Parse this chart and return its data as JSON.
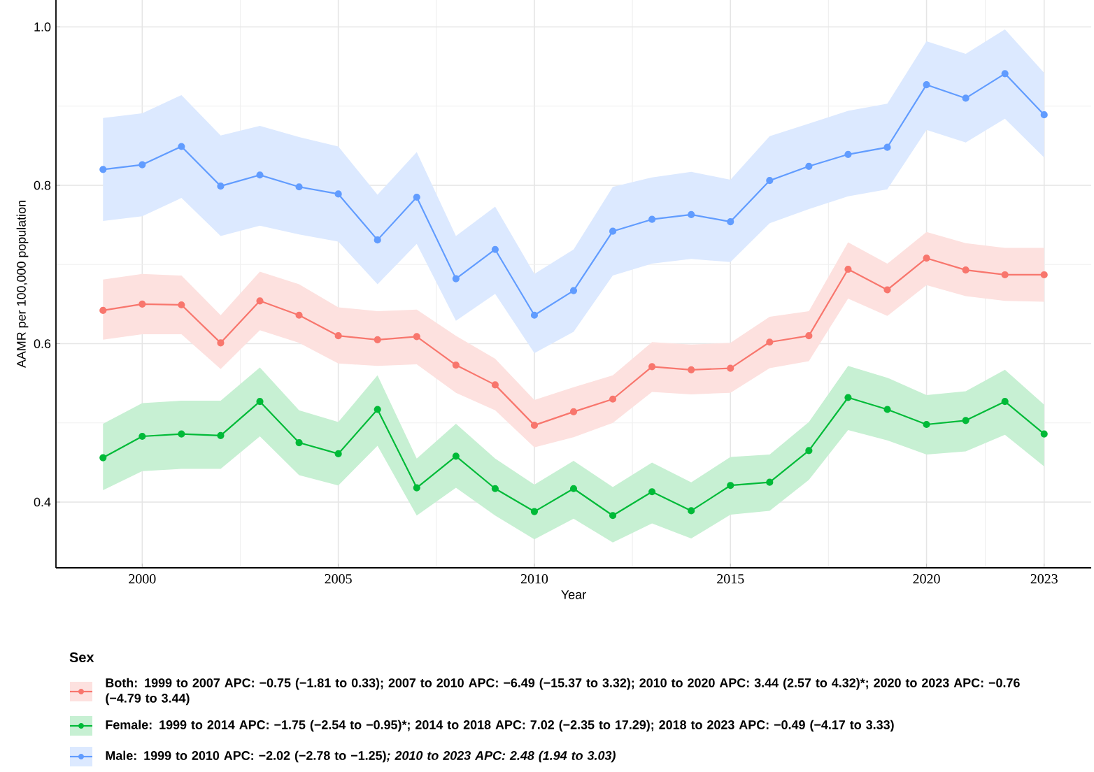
{
  "chart_data": {
    "type": "line",
    "xlabel": "Year",
    "ylabel": "AAMR per 100,000 population",
    "legend_title": "Sex",
    "legend": "bottom",
    "grid": true,
    "marker": "circle",
    "line_style": "solid",
    "x": [
      1999,
      2000,
      2001,
      2002,
      2003,
      2004,
      2005,
      2006,
      2007,
      2008,
      2009,
      2010,
      2011,
      2012,
      2013,
      2014,
      2015,
      2016,
      2017,
      2018,
      2019,
      2020,
      2021,
      2022,
      2023
    ],
    "xlim": [
      1997.8,
      2024.2
    ],
    "xticks": [
      2000,
      2005,
      2010,
      2015,
      2020,
      2023
    ],
    "ylim": [
      0.317,
      1.034
    ],
    "yticks": [
      0.4,
      0.6,
      0.8,
      {
        "value": 1.0,
        "label": "1.0"
      }
    ],
    "series": [
      {
        "name": "Both: 1999 to 2007 APC: −0.75 (−1.81 to 0.33); 2007 to 2010 APC: −6.49 (−15.37 to 3.32); 2010 to 2020 APC: 3.44 (2.57 to 4.32)*; 2020 to 2023 APC: −0.76 (−4.79 to 3.44)",
        "color": "#f8766d",
        "values": [
          0.642,
          0.65,
          0.649,
          0.601,
          0.654,
          0.636,
          0.61,
          0.605,
          0.609,
          0.573,
          0.548,
          0.497,
          0.514,
          0.53,
          0.571,
          0.567,
          0.569,
          0.602,
          0.61,
          0.694,
          0.668,
          0.708,
          0.693,
          0.687,
          0.687
        ],
        "upper": [
          0.681,
          0.688,
          0.686,
          0.636,
          0.691,
          0.675,
          0.646,
          0.641,
          0.643,
          0.61,
          0.581,
          0.529,
          0.545,
          0.56,
          0.602,
          0.599,
          0.601,
          0.634,
          0.641,
          0.728,
          0.701,
          0.741,
          0.727,
          0.721,
          0.721
        ],
        "lower": [
          0.605,
          0.612,
          0.612,
          0.568,
          0.617,
          0.601,
          0.575,
          0.572,
          0.574,
          0.538,
          0.516,
          0.469,
          0.482,
          0.5,
          0.539,
          0.536,
          0.538,
          0.569,
          0.578,
          0.657,
          0.635,
          0.674,
          0.66,
          0.654,
          0.653
        ]
      },
      {
        "name": "Female: 1999 to 2014 APC: −1.75 (−2.54 to −0.95)*; 2014 to 2018 APC: 7.02 (−2.35 to 17.29); 2018 to 2023 APC: −0.49 (−4.17 to 3.33)",
        "color": "#00ba38",
        "values": [
          0.456,
          0.483,
          0.486,
          0.484,
          0.527,
          0.475,
          0.461,
          0.517,
          0.418,
          0.458,
          0.417,
          0.388,
          0.417,
          0.383,
          0.413,
          0.389,
          0.421,
          0.425,
          0.465,
          0.532,
          0.517,
          0.498,
          0.503,
          0.527,
          0.486
        ],
        "upper": [
          0.499,
          0.525,
          0.528,
          0.528,
          0.57,
          0.516,
          0.501,
          0.56,
          0.455,
          0.499,
          0.455,
          0.422,
          0.452,
          0.419,
          0.45,
          0.425,
          0.457,
          0.46,
          0.501,
          0.572,
          0.557,
          0.535,
          0.54,
          0.567,
          0.523
        ],
        "lower": [
          0.415,
          0.439,
          0.442,
          0.442,
          0.483,
          0.434,
          0.421,
          0.471,
          0.383,
          0.418,
          0.383,
          0.353,
          0.379,
          0.349,
          0.373,
          0.354,
          0.384,
          0.389,
          0.428,
          0.491,
          0.478,
          0.46,
          0.464,
          0.485,
          0.445
        ]
      },
      {
        "name": "Male: 1999 to 2010 APC: −2.02 (−2.78 to −1.25)*; 2010 to 2023 APC: 2.48 (1.94 to 3.03)*",
        "color": "#619cff",
        "values": [
          0.82,
          0.826,
          0.849,
          0.799,
          0.813,
          0.798,
          0.789,
          0.731,
          0.785,
          0.682,
          0.719,
          0.636,
          0.667,
          0.742,
          0.757,
          0.763,
          0.754,
          0.806,
          0.824,
          0.839,
          0.848,
          0.927,
          0.91,
          0.941,
          0.889
        ],
        "upper": [
          0.885,
          0.891,
          0.914,
          0.863,
          0.875,
          0.861,
          0.849,
          0.788,
          0.842,
          0.736,
          0.773,
          0.688,
          0.719,
          0.798,
          0.81,
          0.817,
          0.807,
          0.862,
          0.878,
          0.894,
          0.903,
          0.982,
          0.966,
          0.997,
          0.942
        ],
        "lower": [
          0.755,
          0.761,
          0.784,
          0.736,
          0.749,
          0.738,
          0.729,
          0.675,
          0.726,
          0.629,
          0.663,
          0.588,
          0.615,
          0.686,
          0.701,
          0.707,
          0.703,
          0.752,
          0.77,
          0.786,
          0.795,
          0.87,
          0.854,
          0.884,
          0.835
        ]
      }
    ]
  }
}
